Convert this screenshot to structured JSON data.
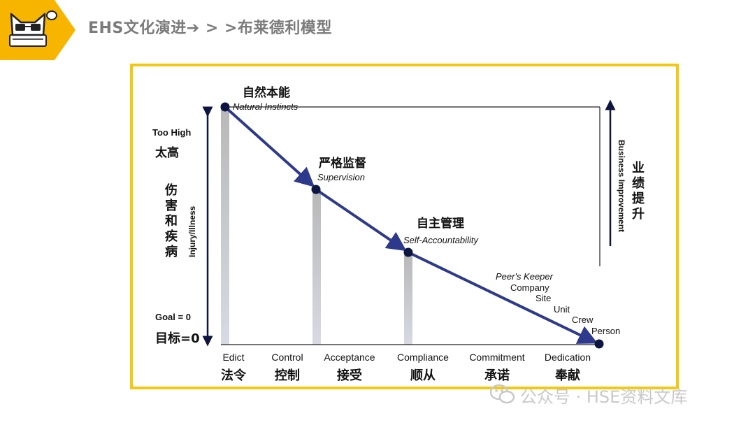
{
  "header": {
    "title": "EHS文化演进➔ > >布莱德利模型",
    "logo_icon": "cat-with-glasses-logo-icon",
    "badge_color": "#f7b500"
  },
  "diagram": {
    "stages": [
      {
        "cn": "自然本能",
        "en": "Natural Instincts"
      },
      {
        "cn": "严格监督",
        "en": "Supervision"
      },
      {
        "cn": "自主管理",
        "en": "Self-Accountability"
      }
    ],
    "peers_keeper": [
      "Peer's Keeper",
      "Company",
      "Site",
      "Unit",
      "Crew",
      "Person"
    ],
    "x_categories": [
      {
        "en": "Edict",
        "cn": "法令"
      },
      {
        "en": "Control",
        "cn": "控制"
      },
      {
        "en": "Acceptance",
        "cn": "接受"
      },
      {
        "en": "Compliance",
        "cn": "顺从"
      },
      {
        "en": "Commitment",
        "cn": "承诺"
      },
      {
        "en": "Dedication",
        "cn": "奉献"
      }
    ],
    "left_axis": {
      "too_high_en": "Too High",
      "too_high_cn": "太高",
      "label_cn": "伤害和疾病",
      "label_en": "Injury/Illness",
      "goal_en": "Goal = 0",
      "goal_cn": "目标=0"
    },
    "right_axis": {
      "label_en": "Business Improvement",
      "label_cn": "业绩提升"
    },
    "colors": {
      "curve": "#2d3a8c",
      "point": "#0d1640",
      "bar": "#c8c8c8",
      "frame": "#f2c811"
    }
  },
  "watermark": {
    "text": "公众号 · HSE资料文库",
    "icon": "wechat-icon"
  }
}
